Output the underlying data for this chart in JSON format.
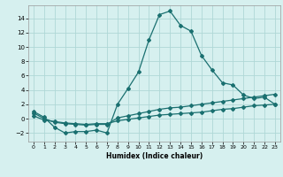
{
  "xlabel": "Humidex (Indice chaleur)",
  "background_color": "#d6f0ef",
  "line_color": "#1a7070",
  "xlim": [
    -0.5,
    23.5
  ],
  "ylim": [
    -3.2,
    15.8
  ],
  "xticks": [
    0,
    1,
    2,
    3,
    4,
    5,
    6,
    7,
    8,
    9,
    10,
    11,
    12,
    13,
    14,
    15,
    16,
    17,
    18,
    19,
    20,
    21,
    22,
    23
  ],
  "yticks": [
    -2,
    0,
    2,
    4,
    6,
    8,
    10,
    12,
    14
  ],
  "line1_x": [
    0,
    1,
    2,
    3,
    4,
    5,
    6,
    7,
    8,
    9,
    10,
    11,
    12,
    13,
    14,
    15,
    16,
    17,
    18,
    19,
    20,
    21,
    22,
    23
  ],
  "line1_y": [
    1.0,
    0.2,
    -1.2,
    -2.0,
    -1.8,
    -1.8,
    -1.6,
    -2.0,
    2.0,
    4.2,
    6.5,
    11.0,
    14.5,
    15.0,
    13.0,
    12.2,
    8.8,
    6.8,
    5.0,
    4.7,
    3.3,
    2.8,
    3.0,
    2.0
  ],
  "line2_x": [
    0,
    1,
    2,
    3,
    4,
    5,
    6,
    7,
    8,
    9,
    10,
    11,
    12,
    13,
    14,
    15,
    16,
    17,
    18,
    19,
    20,
    21,
    22,
    23
  ],
  "line2_y": [
    0.8,
    0.0,
    -0.5,
    -0.7,
    -0.8,
    -0.9,
    -0.8,
    -0.8,
    0.1,
    0.4,
    0.7,
    1.0,
    1.3,
    1.5,
    1.6,
    1.8,
    2.0,
    2.2,
    2.4,
    2.6,
    2.8,
    3.0,
    3.2,
    3.4
  ],
  "line3_x": [
    0,
    1,
    2,
    3,
    4,
    5,
    6,
    7,
    8,
    9,
    10,
    11,
    12,
    13,
    14,
    15,
    16,
    17,
    18,
    19,
    20,
    21,
    22,
    23
  ],
  "line3_y": [
    0.4,
    -0.2,
    -0.4,
    -0.6,
    -0.7,
    -0.8,
    -0.7,
    -0.7,
    -0.3,
    -0.1,
    0.1,
    0.3,
    0.5,
    0.6,
    0.7,
    0.8,
    0.9,
    1.1,
    1.3,
    1.4,
    1.6,
    1.8,
    1.9,
    2.0
  ],
  "grid_color": "#afd8d6",
  "marker": "D",
  "markersize": 2.0,
  "linewidth": 0.9,
  "tick_fontsize_x": 4.5,
  "tick_fontsize_y": 5.0,
  "xlabel_fontsize": 5.5
}
